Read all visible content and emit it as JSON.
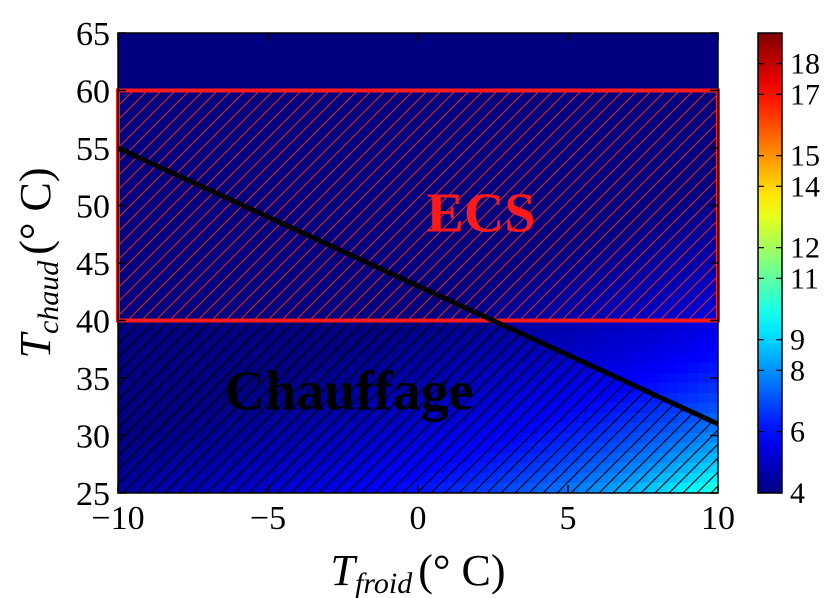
{
  "chart_data": {
    "type": "heatmap",
    "title": "",
    "xlabel": {
      "main": "T",
      "sub": "froid",
      "unit": "(° C)"
    },
    "ylabel": {
      "main": "T",
      "sub": "chaud",
      "unit": "(° C)"
    },
    "xlim": [
      -10,
      10
    ],
    "ylim": [
      25,
      65
    ],
    "x_ticks": [
      -10,
      -5,
      0,
      5,
      10
    ],
    "x_tick_labels": [
      "−10",
      "−5",
      "0",
      "5",
      "10"
    ],
    "y_ticks": [
      25,
      30,
      35,
      40,
      45,
      50,
      55,
      60,
      65
    ],
    "y_tick_labels": [
      "25",
      "30",
      "35",
      "40",
      "45",
      "50",
      "55",
      "60",
      "65"
    ],
    "colorbar": {
      "colormap": "jet",
      "range": [
        4,
        19
      ],
      "ticks": [
        4,
        6,
        8,
        9,
        11,
        12,
        14,
        15,
        17,
        18
      ],
      "tick_labels": [
        "4",
        "6",
        "8",
        "9",
        "11",
        "12",
        "14",
        "15",
        "17",
        "18"
      ]
    },
    "regions": [
      {
        "label": "ECS",
        "kind": "rectangle",
        "x_range": [
          -10,
          10
        ],
        "y_range": [
          40,
          60
        ],
        "edge_color": "#ff1a1a",
        "hatch_color": "#d42a2a"
      },
      {
        "label": "Chauffage",
        "kind": "below_line",
        "line": [
          [
            -10,
            55
          ],
          [
            10,
            31
          ]
        ],
        "edge_color": "#000000",
        "hatch_color": "#000000"
      }
    ],
    "annotations": [
      {
        "text": "ECS",
        "x": 2.1,
        "y": 49.5,
        "color": "#ff1a1a"
      },
      {
        "text": "Chauffage",
        "x": -2.3,
        "y": 34.0,
        "color": "#000000"
      }
    ]
  }
}
